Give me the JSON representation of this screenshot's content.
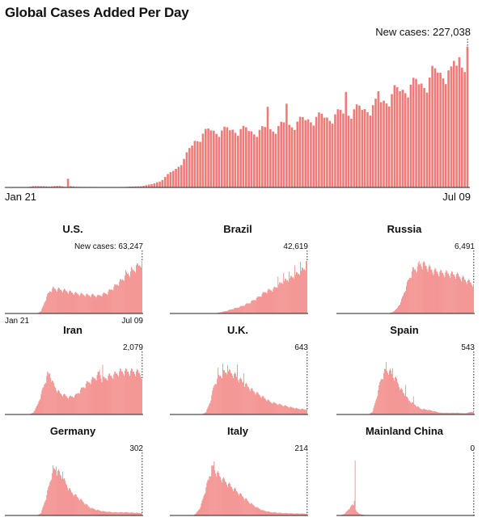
{
  "chart_data": [
    {
      "type": "bar",
      "title": "Global Cases Added Per Day",
      "annotation": "New cases: 227,038",
      "last_value": 227038,
      "x_start": "Jan 21",
      "x_end": "Jul 09",
      "ylim": [
        0,
        235000
      ],
      "color": "#f07a78",
      "keyframes": [
        [
          0,
          0
        ],
        [
          8,
          800
        ],
        [
          10,
          2000
        ],
        [
          14,
          2000
        ],
        [
          16,
          1500
        ],
        [
          20,
          2500
        ],
        [
          22,
          1000
        ],
        [
          23,
          14000
        ],
        [
          24,
          2000
        ],
        [
          26,
          1000
        ],
        [
          40,
          500
        ],
        [
          45,
          1000
        ],
        [
          50,
          2000
        ],
        [
          54,
          5000
        ],
        [
          57,
          10000
        ],
        [
          60,
          20000
        ],
        [
          63,
          30000
        ],
        [
          66,
          45000
        ],
        [
          68,
          60000
        ],
        [
          70,
          75000
        ],
        [
          73,
          85000
        ],
        [
          76,
          92000
        ],
        [
          80,
          90000
        ],
        [
          84,
          93000
        ],
        [
          88,
          92000
        ],
        [
          92,
          90000
        ],
        [
          96,
          92000
        ],
        [
          100,
          96000
        ],
        [
          104,
          100000
        ],
        [
          108,
          104000
        ],
        [
          112,
          110000
        ],
        [
          116,
          112000
        ],
        [
          120,
          113000
        ],
        [
          124,
          118000
        ],
        [
          128,
          123000
        ],
        [
          132,
          125000
        ],
        [
          136,
          130000
        ],
        [
          140,
          140000
        ],
        [
          144,
          150000
        ],
        [
          148,
          160000
        ],
        [
          152,
          165000
        ],
        [
          156,
          170000
        ],
        [
          160,
          185000
        ],
        [
          164,
          185000
        ],
        [
          168,
          200000
        ],
        [
          171,
          210000
        ]
      ],
      "spikes": [
        [
          23,
          14000
        ],
        [
          97,
          130000
        ],
        [
          104,
          135000
        ],
        [
          126,
          154000
        ],
        [
          138,
          155000
        ],
        [
          144,
          165000
        ],
        [
          152,
          175000
        ],
        [
          158,
          196000
        ],
        [
          165,
          195000
        ],
        [
          168,
          210000
        ],
        [
          171,
          227038
        ]
      ]
    },
    {
      "type": "bar",
      "title": "U.S.",
      "annotation": "New cases: 63,247",
      "last_value": 63247,
      "x_start": "Jan 21",
      "x_end": "Jul 09",
      "ylim": [
        0,
        68000
      ],
      "color": "#f07a78",
      "keyframes": [
        [
          0,
          0
        ],
        [
          40,
          0
        ],
        [
          45,
          3000
        ],
        [
          48,
          10000
        ],
        [
          52,
          20000
        ],
        [
          56,
          27000
        ],
        [
          60,
          30000
        ],
        [
          66,
          29000
        ],
        [
          72,
          28000
        ],
        [
          80,
          26000
        ],
        [
          88,
          24000
        ],
        [
          96,
          23000
        ],
        [
          104,
          22000
        ],
        [
          110,
          22000
        ],
        [
          116,
          21000
        ],
        [
          122,
          23000
        ],
        [
          128,
          25000
        ],
        [
          134,
          30000
        ],
        [
          140,
          35000
        ],
        [
          146,
          40000
        ],
        [
          152,
          47000
        ],
        [
          158,
          50000
        ],
        [
          164,
          55000
        ],
        [
          168,
          58000
        ],
        [
          171,
          63247
        ]
      ],
      "spikes": [
        [
          151,
          52000
        ],
        [
          158,
          56000
        ],
        [
          164,
          58000
        ],
        [
          171,
          63247
        ]
      ]
    },
    {
      "type": "bar",
      "title": "Brazil",
      "annotation": "42,619",
      "last_value": 42619,
      "ylim": [
        0,
        46000
      ],
      "color": "#f07a78",
      "keyframes": [
        [
          0,
          0
        ],
        [
          55,
          0
        ],
        [
          60,
          500
        ],
        [
          70,
          2000
        ],
        [
          80,
          4000
        ],
        [
          90,
          6000
        ],
        [
          100,
          9000
        ],
        [
          110,
          13000
        ],
        [
          120,
          18000
        ],
        [
          130,
          20000
        ],
        [
          140,
          25000
        ],
        [
          150,
          28000
        ],
        [
          160,
          32000
        ],
        [
          166,
          35000
        ],
        [
          171,
          38000
        ]
      ],
      "spikes": [
        [
          135,
          30000
        ],
        [
          142,
          33000
        ],
        [
          149,
          34000
        ],
        [
          156,
          39000
        ],
        [
          163,
          42000
        ],
        [
          170,
          42619
        ]
      ]
    },
    {
      "type": "bar",
      "title": "Russia",
      "annotation": "6,491",
      "last_value": 6491,
      "ylim": [
        0,
        12500
      ],
      "color": "#f07a78",
      "keyframes": [
        [
          0,
          0
        ],
        [
          65,
          0
        ],
        [
          70,
          300
        ],
        [
          75,
          1000
        ],
        [
          80,
          2500
        ],
        [
          85,
          5000
        ],
        [
          90,
          7500
        ],
        [
          95,
          9500
        ],
        [
          100,
          10000
        ],
        [
          105,
          11000
        ],
        [
          112,
          10500
        ],
        [
          120,
          9500
        ],
        [
          130,
          9000
        ],
        [
          140,
          8800
        ],
        [
          150,
          8500
        ],
        [
          160,
          7500
        ],
        [
          171,
          6491
        ]
      ],
      "spikes": [
        [
          103,
          11600
        ],
        [
          108,
          11300
        ]
      ]
    },
    {
      "type": "bar",
      "title": "Iran",
      "annotation": "2,079",
      "last_value": 2079,
      "ylim": [
        0,
        3300
      ],
      "color": "#f07a78",
      "keyframes": [
        [
          0,
          0
        ],
        [
          30,
          0
        ],
        [
          35,
          100
        ],
        [
          40,
          500
        ],
        [
          44,
          1000
        ],
        [
          48,
          1600
        ],
        [
          52,
          2200
        ],
        [
          56,
          2400
        ],
        [
          60,
          1800
        ],
        [
          65,
          1400
        ],
        [
          70,
          1200
        ],
        [
          75,
          1100
        ],
        [
          80,
          1000
        ],
        [
          88,
          1100
        ],
        [
          96,
          1500
        ],
        [
          102,
          1800
        ],
        [
          108,
          2000
        ],
        [
          114,
          2200
        ],
        [
          118,
          2400
        ],
        [
          122,
          2000
        ],
        [
          128,
          2200
        ],
        [
          136,
          2300
        ],
        [
          144,
          2500
        ],
        [
          152,
          2500
        ],
        [
          160,
          2500
        ],
        [
          171,
          2400
        ]
      ],
      "spikes": [
        [
          53,
          2500
        ],
        [
          118,
          2600
        ],
        [
          122,
          2900
        ]
      ]
    },
    {
      "type": "bar",
      "title": "U.K.",
      "annotation": "643",
      "last_value": 643,
      "ylim": [
        0,
        6900
      ],
      "color": "#f07a78",
      "keyframes": [
        [
          0,
          0
        ],
        [
          40,
          0
        ],
        [
          45,
          300
        ],
        [
          50,
          1500
        ],
        [
          55,
          3500
        ],
        [
          60,
          4500
        ],
        [
          66,
          5000
        ],
        [
          72,
          5200
        ],
        [
          78,
          5000
        ],
        [
          84,
          4500
        ],
        [
          90,
          4000
        ],
        [
          96,
          3500
        ],
        [
          102,
          3000
        ],
        [
          110,
          2500
        ],
        [
          118,
          2000
        ],
        [
          126,
          1500
        ],
        [
          134,
          1300
        ],
        [
          142,
          1100
        ],
        [
          150,
          900
        ],
        [
          160,
          700
        ],
        [
          171,
          600
        ]
      ],
      "spikes": [
        [
          60,
          5700
        ],
        [
          66,
          6200
        ],
        [
          72,
          6000
        ],
        [
          84,
          6100
        ],
        [
          92,
          5000
        ]
      ]
    },
    {
      "type": "bar",
      "title": "Spain",
      "annotation": "543",
      "last_value": 543,
      "ylim": [
        0,
        10000
      ],
      "color": "#f07a78",
      "keyframes": [
        [
          0,
          0
        ],
        [
          40,
          0
        ],
        [
          45,
          500
        ],
        [
          50,
          3000
        ],
        [
          55,
          6000
        ],
        [
          60,
          7500
        ],
        [
          65,
          7800
        ],
        [
          70,
          7000
        ],
        [
          75,
          6000
        ],
        [
          80,
          4500
        ],
        [
          85,
          3500
        ],
        [
          90,
          2500
        ],
        [
          95,
          2000
        ],
        [
          100,
          1500
        ],
        [
          105,
          1000
        ],
        [
          115,
          800
        ],
        [
          130,
          300
        ],
        [
          150,
          300
        ],
        [
          160,
          200
        ],
        [
          171,
          543
        ]
      ],
      "spikes": [
        [
          62,
          9300
        ],
        [
          70,
          8200
        ],
        [
          86,
          5200
        ],
        [
          96,
          3200
        ]
      ]
    },
    {
      "type": "bar",
      "title": "Germany",
      "annotation": "302",
      "last_value": 302,
      "ylim": [
        0,
        7100
      ],
      "color": "#f07a78",
      "keyframes": [
        [
          0,
          0
        ],
        [
          40,
          0
        ],
        [
          45,
          300
        ],
        [
          52,
          2500
        ],
        [
          58,
          5000
        ],
        [
          62,
          5800
        ],
        [
          66,
          5500
        ],
        [
          70,
          5000
        ],
        [
          76,
          4000
        ],
        [
          82,
          3000
        ],
        [
          88,
          2500
        ],
        [
          94,
          2000
        ],
        [
          100,
          1500
        ],
        [
          106,
          1000
        ],
        [
          114,
          700
        ],
        [
          124,
          500
        ],
        [
          136,
          400
        ],
        [
          148,
          400
        ],
        [
          160,
          350
        ],
        [
          171,
          302
        ]
      ],
      "spikes": [
        [
          60,
          6300
        ],
        [
          64,
          6100
        ],
        [
          72,
          5500
        ]
      ]
    },
    {
      "type": "bar",
      "title": "Italy",
      "annotation": "214",
      "last_value": 214,
      "ylim": [
        0,
        6800
      ],
      "color": "#f07a78",
      "keyframes": [
        [
          0,
          0
        ],
        [
          28,
          0
        ],
        [
          32,
          200
        ],
        [
          38,
          1000
        ],
        [
          44,
          3000
        ],
        [
          50,
          5000
        ],
        [
          54,
          5700
        ],
        [
          58,
          5200
        ],
        [
          64,
          4500
        ],
        [
          70,
          4000
        ],
        [
          76,
          3500
        ],
        [
          82,
          3000
        ],
        [
          88,
          2500
        ],
        [
          94,
          2000
        ],
        [
          100,
          1500
        ],
        [
          108,
          1000
        ],
        [
          116,
          600
        ],
        [
          126,
          400
        ],
        [
          140,
          300
        ],
        [
          154,
          250
        ],
        [
          171,
          214
        ]
      ],
      "spikes": [
        [
          55,
          6500
        ],
        [
          52,
          6000
        ]
      ]
    },
    {
      "type": "bar",
      "title": "Mainland China",
      "annotation": "0",
      "last_value": 0,
      "ylim": [
        0,
        15500
      ],
      "color": "#f07a78",
      "keyframes": [
        [
          0,
          0
        ],
        [
          5,
          100
        ],
        [
          10,
          500
        ],
        [
          14,
          1500
        ],
        [
          18,
          2500
        ],
        [
          20,
          3000
        ],
        [
          22,
          2500
        ],
        [
          25,
          1000
        ],
        [
          28,
          500
        ],
        [
          32,
          200
        ],
        [
          40,
          50
        ],
        [
          60,
          20
        ],
        [
          100,
          10
        ],
        [
          140,
          5
        ],
        [
          171,
          0
        ]
      ],
      "spikes": [
        [
          23,
          15100
        ],
        [
          22,
          4000
        ]
      ]
    }
  ]
}
